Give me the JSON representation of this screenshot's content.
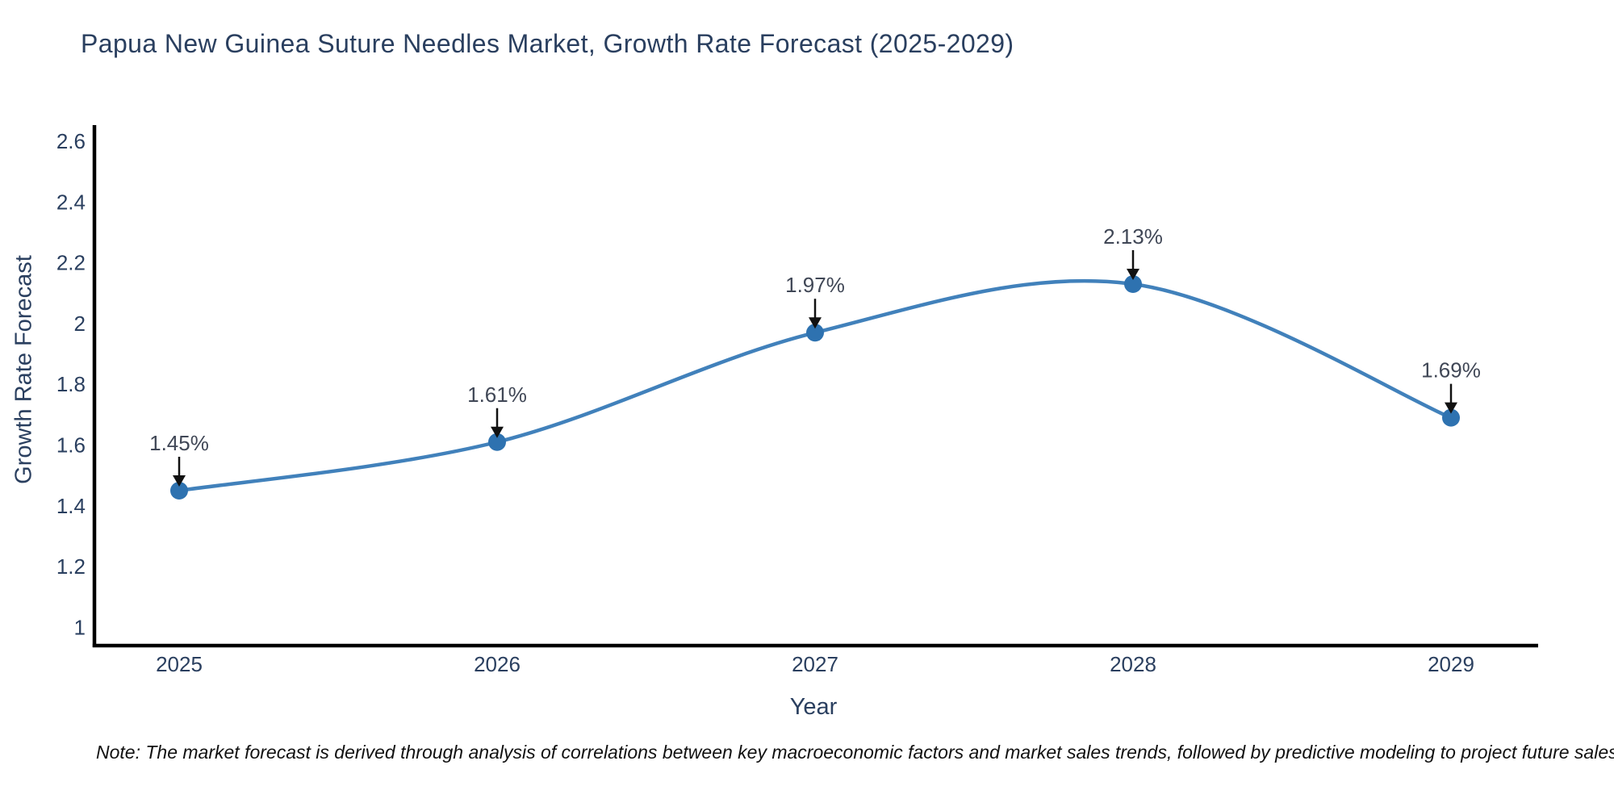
{
  "title": "Papua New Guinea Suture Needles Market, Growth Rate Forecast (2025-2029)",
  "note": "Note: The market forecast is derived through analysis of correlations between key macroeconomic factors and market sales trends, followed by predictive modeling to project future sales",
  "chart_data": {
    "type": "line",
    "title": "Papua New Guinea Suture Needles Market, Growth Rate Forecast (2025-2029)",
    "xlabel": "Year",
    "ylabel": "Growth Rate Forecast",
    "x": [
      2025,
      2026,
      2027,
      2028,
      2029
    ],
    "xtick_labels": [
      "2025",
      "2026",
      "2027",
      "2028",
      "2029"
    ],
    "series": [
      {
        "name": "Growth Rate Forecast",
        "values": [
          1.45,
          1.61,
          1.97,
          2.13,
          1.69
        ]
      }
    ],
    "point_labels": [
      "1.45%",
      "1.61%",
      "1.97%",
      "2.13%",
      "1.69%"
    ],
    "ytick_labels": [
      "1",
      "1.2",
      "1.4",
      "1.6",
      "1.8",
      "2",
      "2.2",
      "2.4",
      "2.6"
    ],
    "ylim": [
      0.94,
      2.65
    ],
    "grid": false,
    "legend": "none",
    "line_shape": "spline",
    "colors": {
      "line": "#4181bb",
      "marker": "#2e72b0",
      "axis": "#000000",
      "tick_text": "#2a3f5f",
      "annotation_text": "#404756",
      "arrow": "#111111",
      "background": "#ffffff"
    }
  }
}
